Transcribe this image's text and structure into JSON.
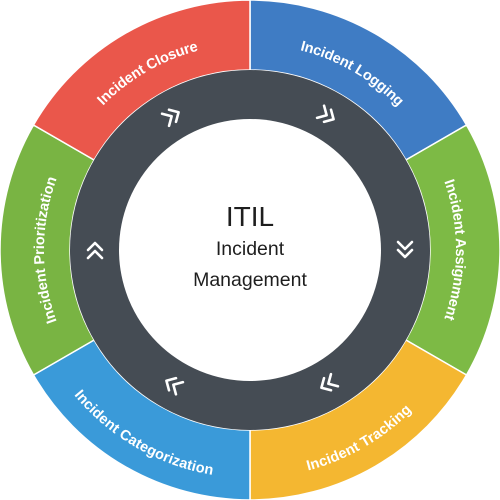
{
  "center": {
    "title": "ITIL",
    "subtitle_line1": "Incident",
    "subtitle_line2": "Management"
  },
  "segments": [
    {
      "label": "Incident Logging",
      "color": "#3f7cc4"
    },
    {
      "label": "Incident Assignment",
      "color": "#7dba45"
    },
    {
      "label": "Incident Tracking",
      "color": "#f4b731"
    },
    {
      "label": "Incident Categorization",
      "color": "#3a9ad9"
    },
    {
      "label": "Incident Prioritization",
      "color": "#79b443"
    },
    {
      "label": "Incident Closure",
      "color": "#ea574b"
    }
  ],
  "ring_color": "#454c54",
  "arrow_color": "#ffffff",
  "chevron_icon": "double-chevron-icon"
}
